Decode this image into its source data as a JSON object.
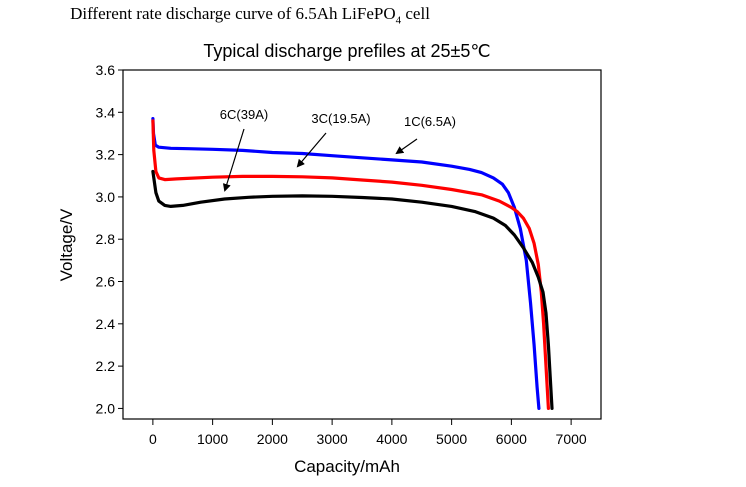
{
  "caption": {
    "prefix": "Different rate discharge curve of 6.5Ah LiFePO",
    "subscript": "4",
    "suffix": " cell"
  },
  "chart_data": {
    "type": "line",
    "title": "Typical discharge prefiles at 25±5℃",
    "xlabel": "Capacity/mAh",
    "ylabel": "Voltage/V",
    "xlim": [
      -500,
      7500
    ],
    "ylim": [
      1.95,
      3.6
    ],
    "xticks": [
      0,
      1000,
      2000,
      3000,
      4000,
      5000,
      6000,
      7000
    ],
    "yticks": [
      2.0,
      2.2,
      2.4,
      2.6,
      2.8,
      3.0,
      3.2,
      3.4,
      3.6
    ],
    "grid": false,
    "series": [
      {
        "name": "1C(6.5A)",
        "color": "#0000ff",
        "points": [
          [
            0,
            3.37
          ],
          [
            10,
            3.3
          ],
          [
            40,
            3.245
          ],
          [
            100,
            3.235
          ],
          [
            300,
            3.23
          ],
          [
            600,
            3.228
          ],
          [
            1000,
            3.225
          ],
          [
            1500,
            3.22
          ],
          [
            2000,
            3.21
          ],
          [
            2500,
            3.205
          ],
          [
            3000,
            3.195
          ],
          [
            3500,
            3.185
          ],
          [
            4000,
            3.175
          ],
          [
            4500,
            3.165
          ],
          [
            5000,
            3.145
          ],
          [
            5300,
            3.13
          ],
          [
            5500,
            3.115
          ],
          [
            5700,
            3.09
          ],
          [
            5850,
            3.06
          ],
          [
            5950,
            3.02
          ],
          [
            6050,
            2.95
          ],
          [
            6150,
            2.85
          ],
          [
            6250,
            2.7
          ],
          [
            6320,
            2.5
          ],
          [
            6380,
            2.3
          ],
          [
            6430,
            2.1
          ],
          [
            6460,
            2.0
          ]
        ]
      },
      {
        "name": "3C(19.5A)",
        "color": "#ff0000",
        "points": [
          [
            0,
            3.36
          ],
          [
            15,
            3.22
          ],
          [
            50,
            3.12
          ],
          [
            100,
            3.09
          ],
          [
            200,
            3.082
          ],
          [
            400,
            3.085
          ],
          [
            1000,
            3.093
          ],
          [
            1500,
            3.097
          ],
          [
            2000,
            3.097
          ],
          [
            2500,
            3.095
          ],
          [
            3000,
            3.09
          ],
          [
            3500,
            3.08
          ],
          [
            4000,
            3.07
          ],
          [
            4500,
            3.055
          ],
          [
            5000,
            3.035
          ],
          [
            5500,
            3.01
          ],
          [
            5800,
            2.98
          ],
          [
            6000,
            2.95
          ],
          [
            6100,
            2.93
          ],
          [
            6200,
            2.9
          ],
          [
            6300,
            2.85
          ],
          [
            6380,
            2.78
          ],
          [
            6450,
            2.68
          ],
          [
            6500,
            2.55
          ],
          [
            6540,
            2.4
          ],
          [
            6570,
            2.25
          ],
          [
            6600,
            2.1
          ],
          [
            6620,
            2.0
          ]
        ]
      },
      {
        "name": "6C(39A)",
        "color": "#000000",
        "points": [
          [
            0,
            3.12
          ],
          [
            20,
            3.08
          ],
          [
            50,
            3.02
          ],
          [
            100,
            2.98
          ],
          [
            200,
            2.96
          ],
          [
            300,
            2.955
          ],
          [
            500,
            2.96
          ],
          [
            800,
            2.975
          ],
          [
            1200,
            2.99
          ],
          [
            1600,
            2.998
          ],
          [
            2000,
            3.003
          ],
          [
            2500,
            3.005
          ],
          [
            3000,
            3.003
          ],
          [
            3500,
            2.997
          ],
          [
            4000,
            2.99
          ],
          [
            4500,
            2.975
          ],
          [
            5000,
            2.955
          ],
          [
            5400,
            2.93
          ],
          [
            5700,
            2.9
          ],
          [
            5900,
            2.865
          ],
          [
            6050,
            2.82
          ],
          [
            6200,
            2.76
          ],
          [
            6350,
            2.69
          ],
          [
            6450,
            2.62
          ],
          [
            6530,
            2.55
          ],
          [
            6580,
            2.45
          ],
          [
            6620,
            2.3
          ],
          [
            6650,
            2.15
          ],
          [
            6680,
            2.0
          ]
        ]
      }
    ],
    "annotations": [
      {
        "text": "6C(39A)",
        "series": "6C(39A)"
      },
      {
        "text": "3C(19.5A)",
        "series": "3C(19.5A)"
      },
      {
        "text": "1C(6.5A)",
        "series": "1C(6.5A)"
      }
    ]
  }
}
